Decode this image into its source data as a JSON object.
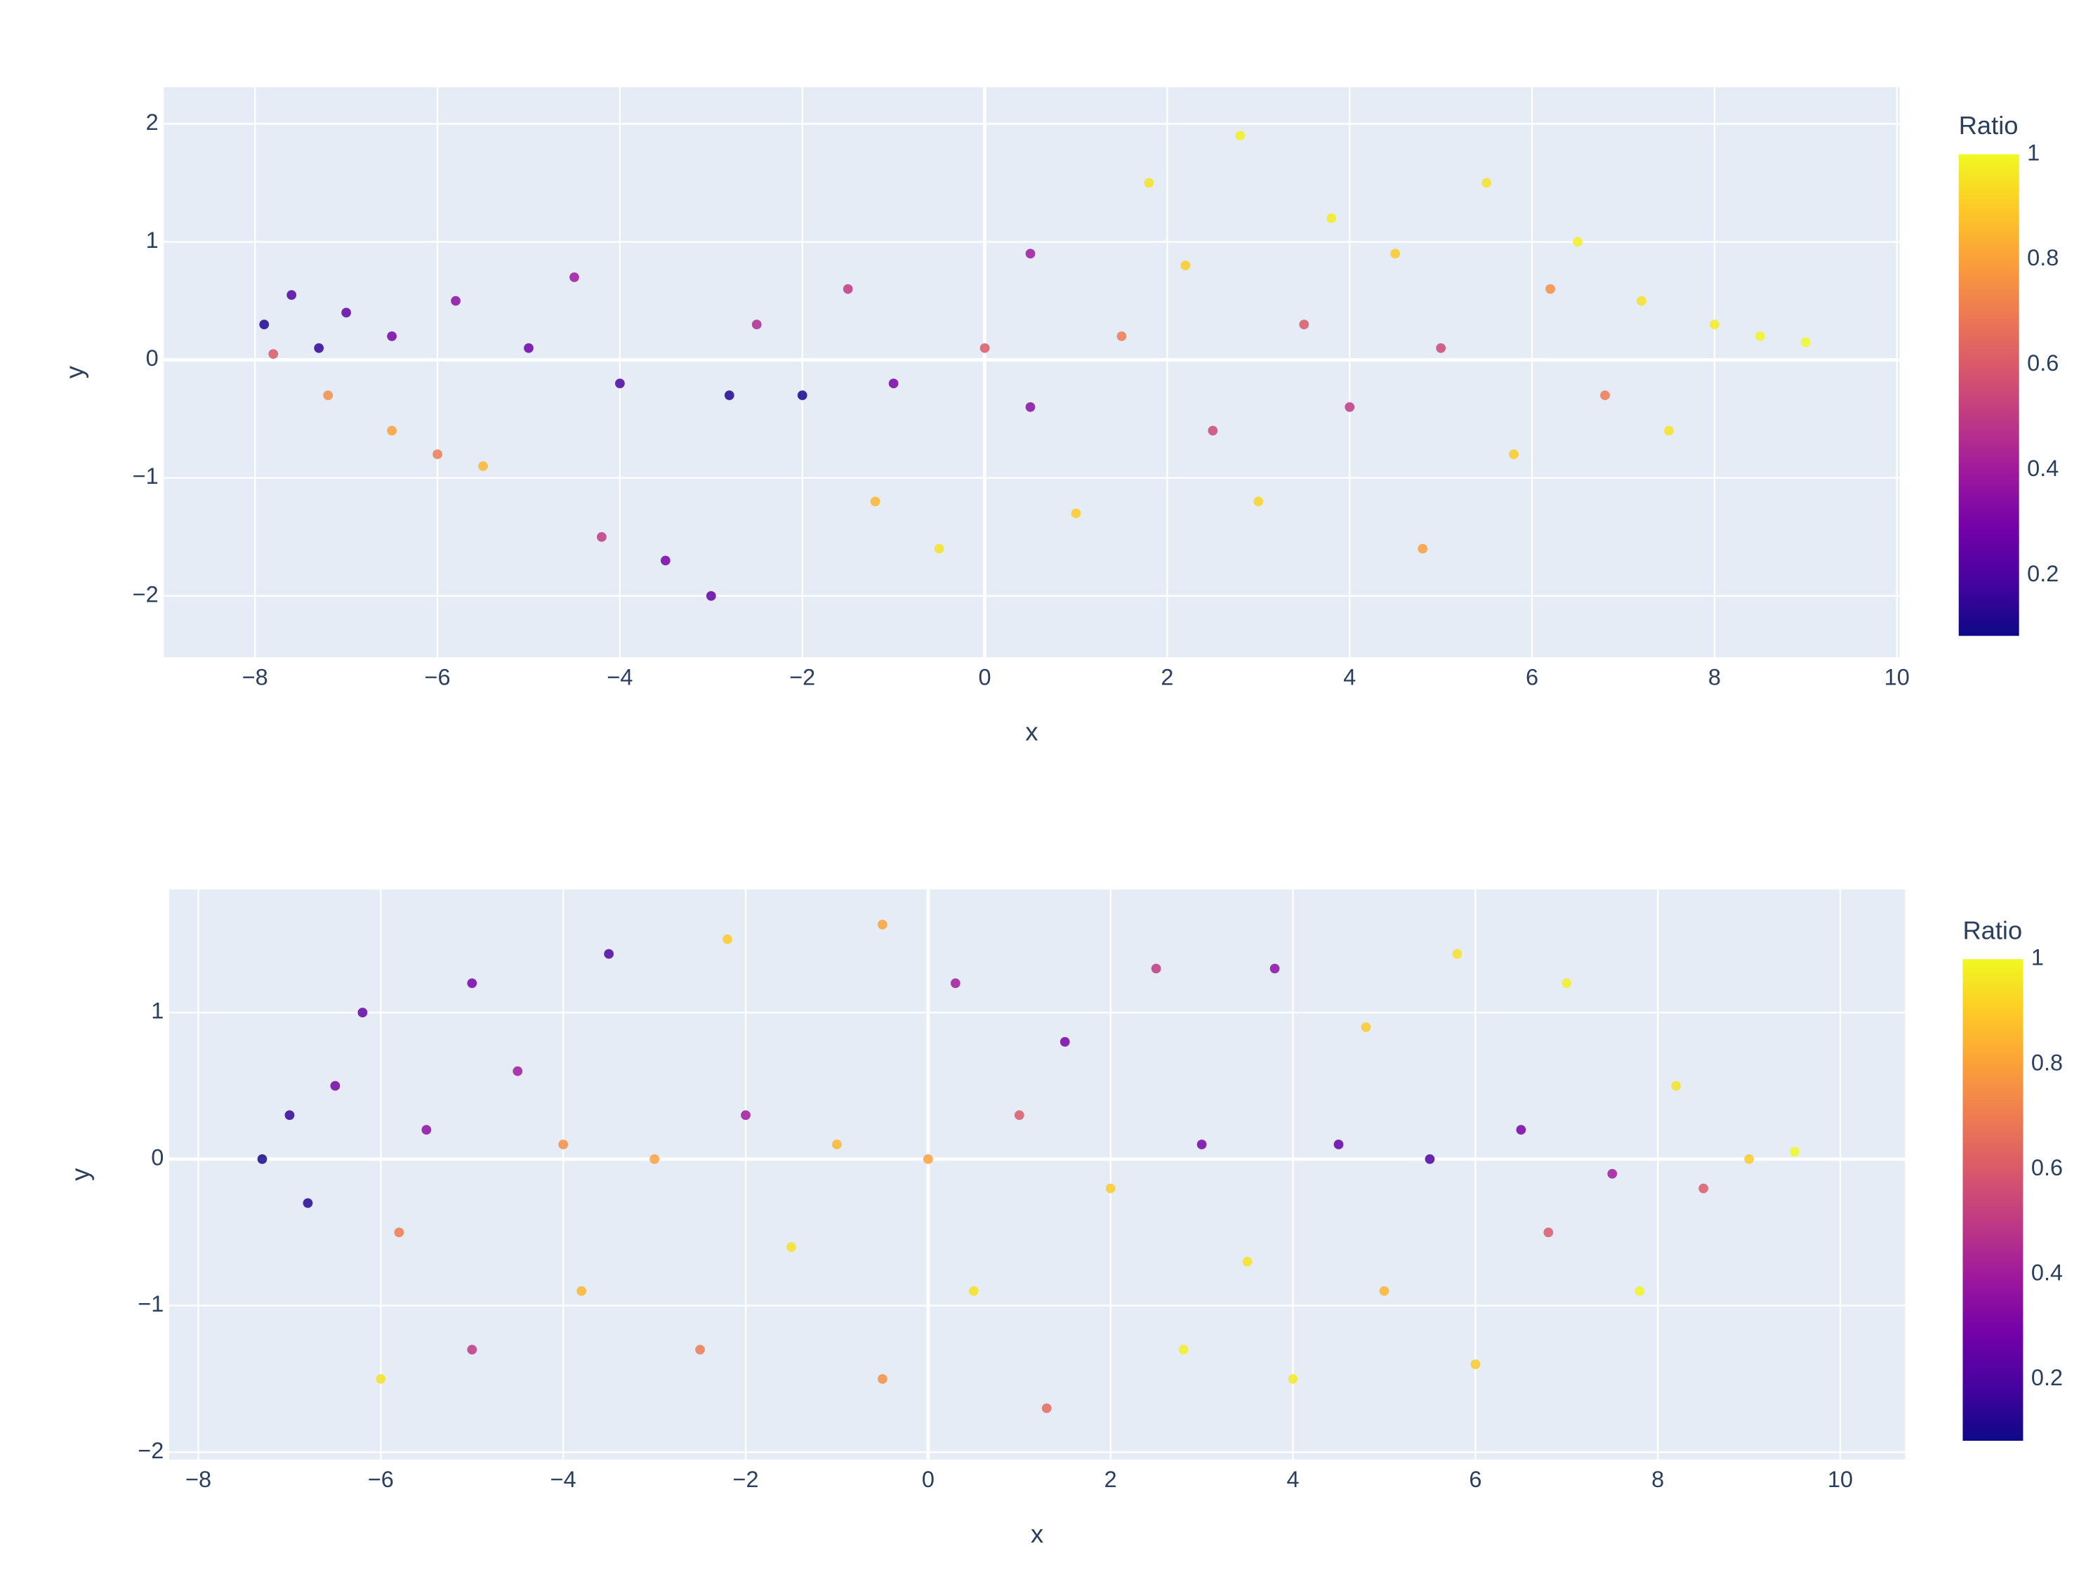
{
  "chart_data": [
    {
      "type": "scatter",
      "x_label": "x",
      "y_label": "y",
      "colorbar_title": "Ratio",
      "xlim": [
        -9.0,
        10.03
      ],
      "ylim": [
        -2.52,
        2.31
      ],
      "xticks": [
        {
          "value": -8,
          "label": "−8"
        },
        {
          "value": -6,
          "label": "−6"
        },
        {
          "value": -4,
          "label": "−4"
        },
        {
          "value": -2,
          "label": "−2"
        },
        0,
        2,
        4,
        6,
        8,
        10
      ],
      "yticks": [
        {
          "value": -2,
          "label": "−2"
        },
        {
          "value": -1,
          "label": "−1"
        },
        0,
        1,
        2
      ],
      "clim": [
        0.085,
        1
      ],
      "cticks": [
        0.2,
        0.4,
        0.6,
        0.8,
        1
      ],
      "colorscale": [
        "#0d0887",
        "#46039f",
        "#7201a8",
        "#9c179e",
        "#bd3786",
        "#d8576b",
        "#ed7953",
        "#fb9f3a",
        "#fdca26",
        "#f0f921"
      ],
      "grid": true,
      "x": [
        -7.9,
        -7.6,
        -7.3,
        -7.0,
        -7.8,
        -7.2,
        -6.5,
        -6.0,
        -5.5,
        -6.5,
        -5.8,
        -5.0,
        -4.5,
        -4.0,
        -4.2,
        -3.5,
        -3.0,
        -2.5,
        -2.0,
        -1.5,
        -1.0,
        -1.2,
        -0.5,
        0.0,
        0.5,
        0.5,
        1.0,
        1.5,
        1.8,
        2.2,
        2.5,
        2.8,
        3.0,
        3.5,
        3.8,
        4.0,
        4.5,
        4.8,
        5.0,
        5.5,
        5.8,
        6.2,
        6.5,
        6.8,
        7.2,
        7.5,
        8.0,
        8.5,
        9.0,
        -2.8
      ],
      "y": [
        0.3,
        0.55,
        0.1,
        0.4,
        0.05,
        -0.3,
        -0.6,
        -0.8,
        -0.9,
        0.2,
        0.5,
        0.1,
        0.7,
        -0.2,
        -1.5,
        -1.7,
        -2.0,
        0.3,
        -0.3,
        0.6,
        -0.2,
        -1.2,
        -1.6,
        0.1,
        0.9,
        -0.4,
        -1.3,
        0.2,
        1.5,
        0.8,
        -0.6,
        1.9,
        -1.2,
        0.3,
        1.2,
        -0.4,
        0.9,
        -1.6,
        0.1,
        1.5,
        -0.8,
        0.6,
        1.0,
        -0.3,
        0.5,
        -0.6,
        0.3,
        0.2,
        0.15,
        -0.3
      ],
      "ratio": [
        0.12,
        0.2,
        0.15,
        0.25,
        0.6,
        0.75,
        0.8,
        0.7,
        0.85,
        0.3,
        0.35,
        0.28,
        0.4,
        0.2,
        0.5,
        0.3,
        0.25,
        0.45,
        0.1,
        0.5,
        0.3,
        0.85,
        0.95,
        0.6,
        0.4,
        0.35,
        0.9,
        0.7,
        0.95,
        0.9,
        0.55,
        0.98,
        0.92,
        0.6,
        0.97,
        0.5,
        0.9,
        0.8,
        0.55,
        0.95,
        0.9,
        0.75,
        0.98,
        0.7,
        0.95,
        0.95,
        0.97,
        0.99,
        1.0,
        0.12
      ]
    },
    {
      "type": "scatter",
      "x_label": "x",
      "y_label": "y",
      "colorbar_title": "Ratio",
      "xlim": [
        -8.32,
        10.71
      ],
      "ylim": [
        -2.05,
        1.84
      ],
      "xticks": [
        {
          "value": -8,
          "label": "−8"
        },
        {
          "value": -6,
          "label": "−6"
        },
        {
          "value": -4,
          "label": "−4"
        },
        {
          "value": -2,
          "label": "−2"
        },
        0,
        2,
        4,
        6,
        8,
        10
      ],
      "yticks": [
        {
          "value": -2,
          "label": "−2"
        },
        {
          "value": -1,
          "label": "−1"
        },
        0,
        1
      ],
      "clim": [
        0.083,
        1
      ],
      "cticks": [
        0.2,
        0.4,
        0.6,
        0.8,
        1
      ],
      "colorscale": [
        "#0d0887",
        "#46039f",
        "#7201a8",
        "#9c179e",
        "#bd3786",
        "#d8576b",
        "#ed7953",
        "#fb9f3a",
        "#fdca26",
        "#f0f921"
      ],
      "grid": true,
      "x": [
        -7.3,
        -7.0,
        -6.8,
        -6.5,
        -6.2,
        -5.8,
        -5.5,
        -5.0,
        -5.0,
        -4.5,
        -4.0,
        -3.8,
        -3.5,
        -3.0,
        -2.5,
        -2.2,
        -2.0,
        -1.5,
        -1.0,
        -0.5,
        -0.5,
        0.0,
        0.3,
        0.5,
        1.0,
        1.3,
        1.5,
        2.0,
        2.5,
        2.8,
        3.0,
        3.5,
        3.8,
        4.0,
        4.5,
        4.8,
        5.0,
        5.5,
        5.8,
        6.0,
        6.5,
        6.8,
        7.0,
        7.5,
        7.8,
        8.2,
        8.5,
        9.0,
        9.5,
        -6.0
      ],
      "y": [
        0.0,
        0.3,
        -0.3,
        0.5,
        1.0,
        -0.5,
        0.2,
        1.2,
        -1.3,
        0.6,
        0.1,
        -0.9,
        1.4,
        0.0,
        -1.3,
        1.5,
        0.3,
        -0.6,
        0.1,
        1.6,
        -1.5,
        0.0,
        1.2,
        -0.9,
        0.3,
        -1.7,
        0.8,
        -0.2,
        1.3,
        -1.3,
        0.1,
        -0.7,
        1.3,
        -1.5,
        0.1,
        0.9,
        -0.9,
        0.0,
        1.4,
        -1.4,
        0.2,
        -0.5,
        1.2,
        -0.1,
        -0.9,
        0.5,
        -0.2,
        0.0,
        0.05,
        -1.5
      ],
      "ratio": [
        0.1,
        0.15,
        0.12,
        0.3,
        0.25,
        0.7,
        0.35,
        0.3,
        0.5,
        0.4,
        0.75,
        0.85,
        0.2,
        0.8,
        0.7,
        0.9,
        0.4,
        0.95,
        0.85,
        0.8,
        0.75,
        0.8,
        0.4,
        0.95,
        0.6,
        0.65,
        0.3,
        0.9,
        0.5,
        0.98,
        0.3,
        0.95,
        0.35,
        0.97,
        0.25,
        0.9,
        0.85,
        0.2,
        0.95,
        0.9,
        0.3,
        0.6,
        0.98,
        0.4,
        0.99,
        0.95,
        0.6,
        0.9,
        1.0,
        0.95
      ]
    }
  ]
}
